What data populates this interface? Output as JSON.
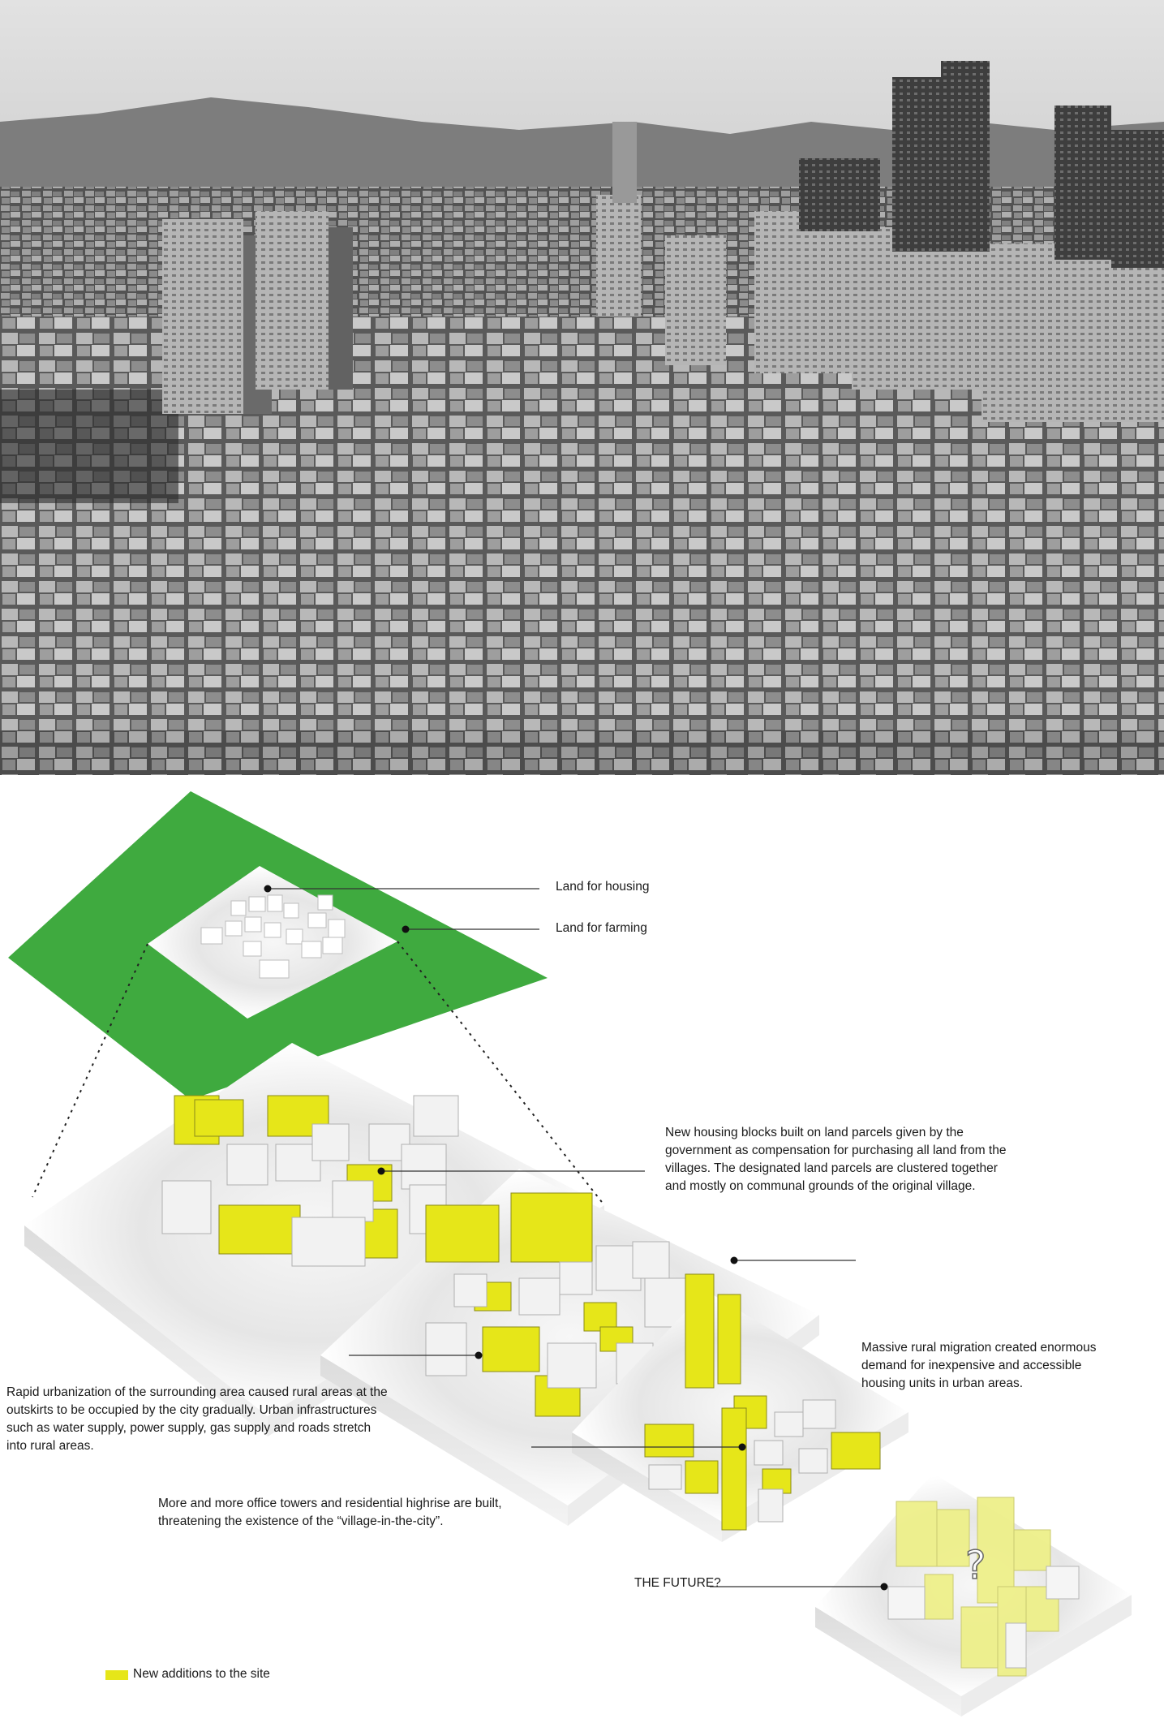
{
  "colors": {
    "farm_green": "#3faa3f",
    "new_additions_yellow": "#e6e619",
    "block_white": "#f2f2f2",
    "future_yellow": "#eef08a"
  },
  "photo": {
    "subject": "aerial-city-photo"
  },
  "annotations": {
    "land_housing": "Land for housing",
    "land_farming": "Land for farming",
    "new_housing": "New housing blocks built on land parcels given by the government as compensation for purchasing all land from the villages. The designated land parcels are clustered together and mostly on communal grounds of the original village.",
    "rural_migration": "Massive rural migration created enormous demand for inexpensive and accessible housing units in urban areas.",
    "rapid_urbanization": "Rapid urbanization of the surrounding area caused rural areas at the outskirts to be occupied by the city gradually. Urban infrastructures such as water supply, power supply, gas supply and roads stretch into rural areas.",
    "office_towers": "More and more office towers and residential highrise are built, threatening the existence of the “village-in-the-city”.",
    "future": "THE FUTURE?",
    "question_mark": "?"
  },
  "legend": {
    "label": "New additions to the site"
  }
}
